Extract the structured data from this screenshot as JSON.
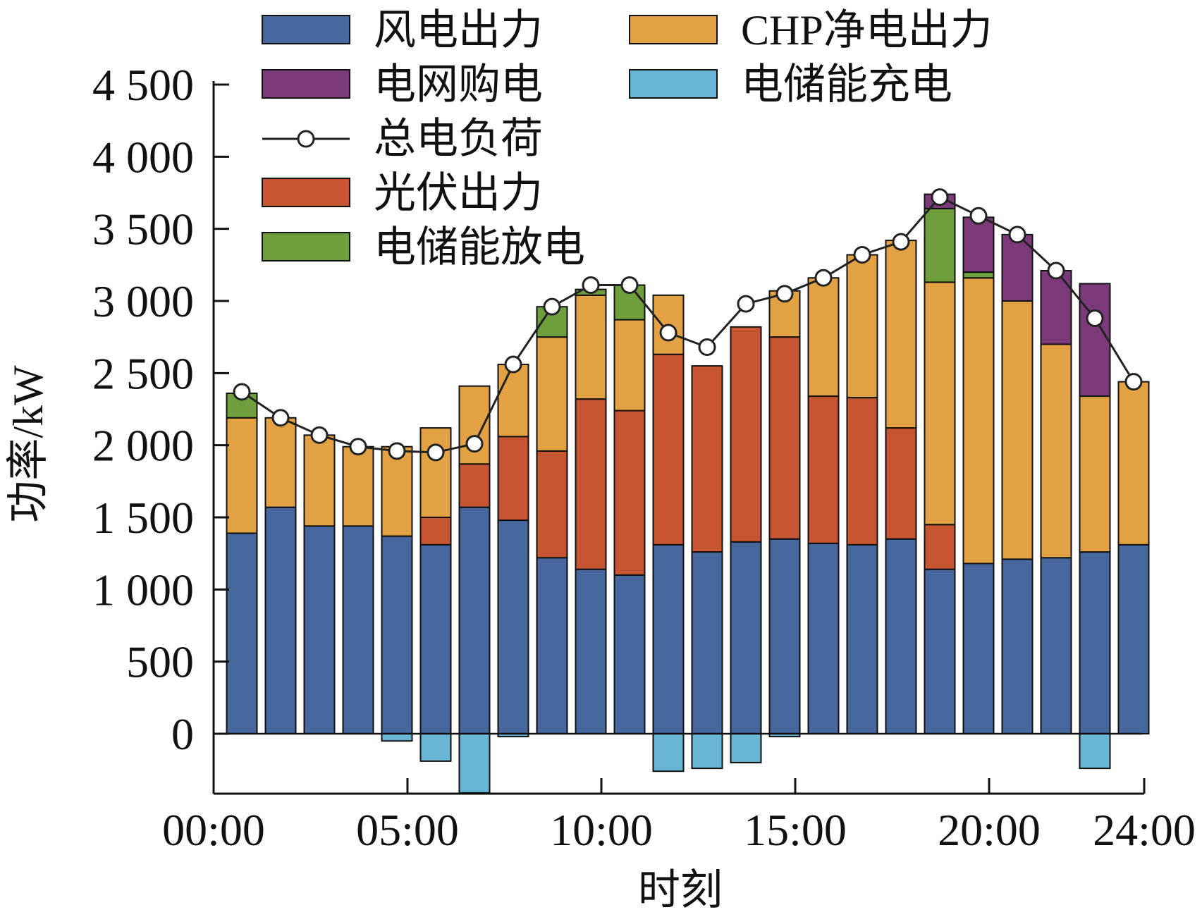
{
  "chart_data": {
    "type": "bar",
    "stacked": true,
    "categories": [
      "1",
      "2",
      "3",
      "4",
      "5",
      "6",
      "7",
      "8",
      "9",
      "10",
      "11",
      "12",
      "13",
      "14",
      "15",
      "16",
      "17",
      "18",
      "19",
      "20",
      "21",
      "22",
      "23",
      "24"
    ],
    "x_ticks": [
      "00:00",
      "05:00",
      "10:00",
      "15:00",
      "20:00",
      "24:00"
    ],
    "x_tick_positions": [
      0,
      5,
      10,
      15,
      20,
      24
    ],
    "xlabel": "时刻",
    "ylabel": "功率/kW",
    "ylim": [
      -420,
      4600
    ],
    "y_ticks": [
      "4 500",
      "4 000",
      "3 500",
      "3 000",
      "2 500",
      "2 000",
      "1 500",
      "1 000",
      "500",
      "0"
    ],
    "y_tick_values": [
      4500,
      4000,
      3500,
      3000,
      2500,
      2000,
      1500,
      1000,
      500,
      0
    ],
    "grid": false,
    "legend_position": "top",
    "series": [
      {
        "name": "风电出力",
        "key": "wind",
        "color": "#47689F",
        "values": [
          1390,
          1570,
          1440,
          1440,
          1370,
          1310,
          1570,
          1480,
          1220,
          1140,
          1100,
          1310,
          1260,
          1330,
          1350,
          1320,
          1310,
          1350,
          1140,
          1180,
          1210,
          1220,
          1260,
          1310
        ]
      },
      {
        "name": "光伏出力",
        "key": "pv",
        "color": "#C85531",
        "values": [
          0,
          0,
          0,
          0,
          0,
          190,
          300,
          580,
          740,
          1180,
          1140,
          1320,
          1290,
          1490,
          1400,
          1020,
          1020,
          770,
          310,
          0,
          0,
          0,
          0,
          0
        ]
      },
      {
        "name": "CHP净电出力",
        "key": "chp",
        "color": "#E2A143",
        "values": [
          800,
          620,
          630,
          550,
          620,
          620,
          540,
          500,
          790,
          720,
          630,
          410,
          0,
          0,
          320,
          820,
          990,
          1300,
          1680,
          1980,
          1790,
          1480,
          1080,
          1130
        ]
      },
      {
        "name": "电储能放电",
        "key": "discharge",
        "color": "#6F9E3D",
        "values": [
          170,
          0,
          0,
          0,
          0,
          0,
          0,
          0,
          210,
          40,
          240,
          0,
          0,
          0,
          0,
          0,
          0,
          0,
          510,
          40,
          0,
          0,
          0,
          0
        ]
      },
      {
        "name": "电网购电",
        "key": "grid",
        "color": "#7D3A7B",
        "values": [
          0,
          0,
          0,
          0,
          0,
          0,
          0,
          0,
          0,
          0,
          0,
          0,
          0,
          0,
          0,
          0,
          0,
          0,
          100,
          380,
          460,
          510,
          780,
          0
        ]
      },
      {
        "name": "电储能充电",
        "key": "charge",
        "color": "#68B5D6",
        "values": [
          0,
          0,
          0,
          0,
          -50,
          -190,
          -410,
          -20,
          0,
          0,
          0,
          -260,
          -240,
          -200,
          -20,
          0,
          0,
          0,
          0,
          0,
          0,
          0,
          -240,
          0
        ]
      }
    ],
    "line_series": {
      "name": "总电负荷",
      "color": "#222222",
      "values": [
        2370,
        2190,
        2070,
        1990,
        1960,
        1950,
        2010,
        2560,
        2960,
        3110,
        3110,
        2780,
        2680,
        2980,
        3050,
        3160,
        3320,
        3410,
        3720,
        3590,
        3460,
        3210,
        2880,
        2440
      ]
    },
    "legend": [
      {
        "label": "风电出力",
        "kind": "bar",
        "color": "#47689F"
      },
      {
        "label": "CHP净电出力",
        "kind": "bar",
        "color": "#E2A143"
      },
      {
        "label": "电网购电",
        "kind": "bar",
        "color": "#7D3A7B"
      },
      {
        "label": "电储能充电",
        "kind": "bar",
        "color": "#68B5D6"
      },
      {
        "label": "总电负荷",
        "kind": "line",
        "color": "#222222"
      },
      {
        "label": "光伏出力",
        "kind": "bar",
        "color": "#C85531"
      },
      {
        "label": "电储能放电",
        "kind": "bar",
        "color": "#6F9E3D"
      }
    ]
  }
}
